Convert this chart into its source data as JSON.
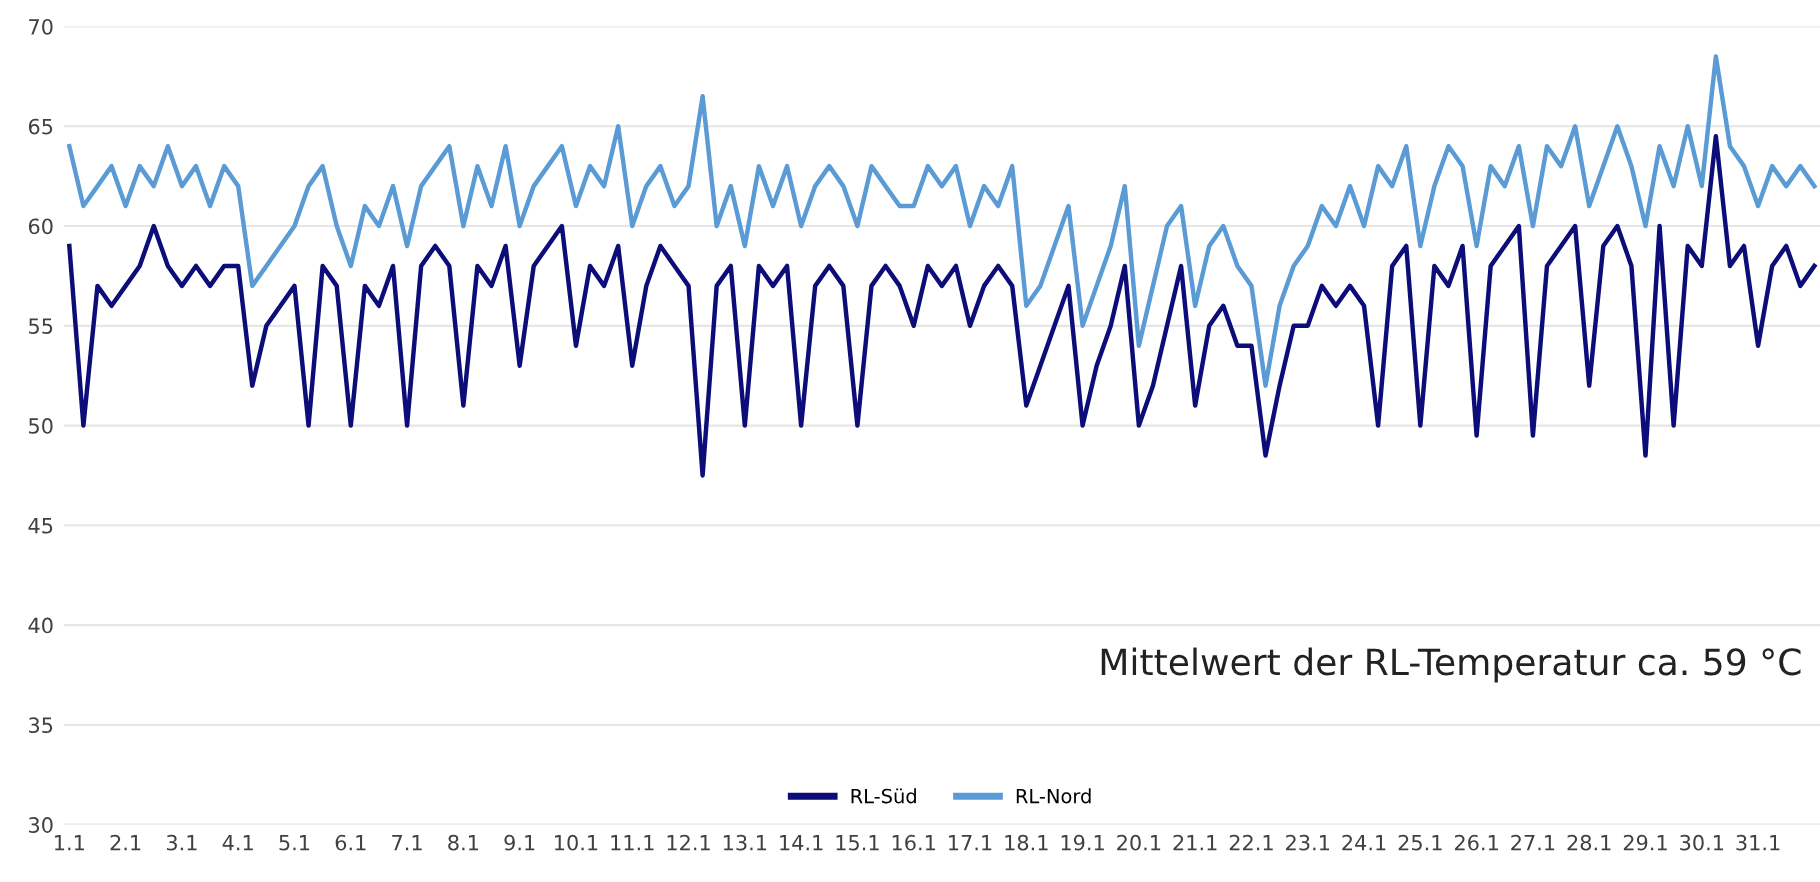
{
  "chart_data": {
    "type": "line",
    "categories": [
      "1.1",
      null,
      null,
      null,
      "2.1",
      null,
      null,
      null,
      "3.1",
      null,
      null,
      null,
      "4.1",
      null,
      null,
      null,
      "5.1",
      null,
      null,
      null,
      "6.1",
      null,
      null,
      null,
      "7.1",
      null,
      null,
      null,
      "8.1",
      null,
      null,
      null,
      "9.1",
      null,
      null,
      null,
      "10.1",
      null,
      null,
      null,
      "11.1",
      null,
      null,
      null,
      "12.1",
      null,
      null,
      null,
      "13.1",
      null,
      null,
      null,
      "14.1",
      null,
      null,
      null,
      "15.1",
      null,
      null,
      null,
      "16.1",
      null,
      null,
      null,
      "17.1",
      null,
      null,
      null,
      "18.1",
      null,
      null,
      null,
      "19.1",
      null,
      null,
      null,
      "20.1",
      null,
      null,
      null,
      "21.1",
      null,
      null,
      null,
      "22.1",
      null,
      null,
      null,
      "23.1",
      null,
      null,
      null,
      "24.1",
      null,
      null,
      null,
      "25.1",
      null,
      null,
      null,
      "26.1",
      null,
      null,
      null,
      "27.1",
      null,
      null,
      null,
      "28.1",
      null,
      null,
      null,
      "29.1",
      null,
      null,
      null,
      "30.1",
      null,
      null,
      null,
      "31.1",
      null,
      null,
      null,
      null
    ],
    "series": [
      {
        "name": "RL-Süd",
        "color": "#0d0d7a",
        "values": [
          59,
          50,
          57,
          56,
          57,
          58,
          60,
          58,
          57,
          58,
          57,
          58,
          58,
          52,
          55,
          56,
          57,
          50,
          58,
          57,
          50,
          57,
          56,
          58,
          50,
          58,
          59,
          58,
          51,
          58,
          57,
          59,
          53,
          58,
          59,
          60,
          54,
          58,
          57,
          59,
          53,
          57,
          59,
          58,
          57,
          47.5,
          57,
          58,
          50,
          58,
          57,
          58,
          50,
          57,
          58,
          57,
          50,
          57,
          58,
          57,
          55,
          58,
          57,
          58,
          55,
          57,
          58,
          57,
          51,
          53,
          55,
          57,
          50,
          53,
          55,
          58,
          50,
          52,
          55,
          58,
          51,
          55,
          56,
          54,
          54,
          48.5,
          52,
          55,
          55,
          57,
          56,
          57,
          56,
          50,
          58,
          59,
          50,
          58,
          57,
          59,
          49.5,
          58,
          59,
          60,
          49.5,
          58,
          59,
          60,
          52,
          59,
          60,
          58,
          48.5,
          60,
          50,
          59,
          58,
          64.5,
          58,
          59,
          54,
          58,
          59,
          57,
          58
        ]
      },
      {
        "name": "RL-Nord",
        "color": "#5b9bd5",
        "values": [
          64,
          61,
          62,
          63,
          61,
          63,
          62,
          64,
          62,
          63,
          61,
          63,
          62,
          57,
          58,
          59,
          60,
          62,
          63,
          60,
          58,
          61,
          60,
          62,
          59,
          62,
          63,
          64,
          60,
          63,
          61,
          64,
          60,
          62,
          63,
          64,
          61,
          63,
          62,
          65,
          60,
          62,
          63,
          61,
          62,
          66.5,
          60,
          62,
          59,
          63,
          61,
          63,
          60,
          62,
          63,
          62,
          60,
          63,
          62,
          61,
          61,
          63,
          62,
          63,
          60,
          62,
          61,
          63,
          56,
          57,
          59,
          61,
          55,
          57,
          59,
          62,
          54,
          57,
          60,
          61,
          56,
          59,
          60,
          58,
          57,
          52,
          56,
          58,
          59,
          61,
          60,
          62,
          60,
          63,
          62,
          64,
          59,
          62,
          64,
          63,
          59,
          63,
          62,
          64,
          60,
          64,
          63,
          65,
          61,
          63,
          65,
          63,
          60,
          64,
          62,
          65,
          62,
          68.5,
          64,
          63,
          61,
          63,
          62,
          63,
          62
        ]
      }
    ],
    "ylim": [
      30,
      70
    ],
    "yticks": [
      30,
      35,
      40,
      45,
      50,
      55,
      60,
      65,
      70
    ],
    "grid": "y",
    "legend": "bottom",
    "marker": "none",
    "line_style": "solid",
    "annotations": [
      "Mittelwert der RL-Temperatur ca. 59 °C"
    ]
  }
}
